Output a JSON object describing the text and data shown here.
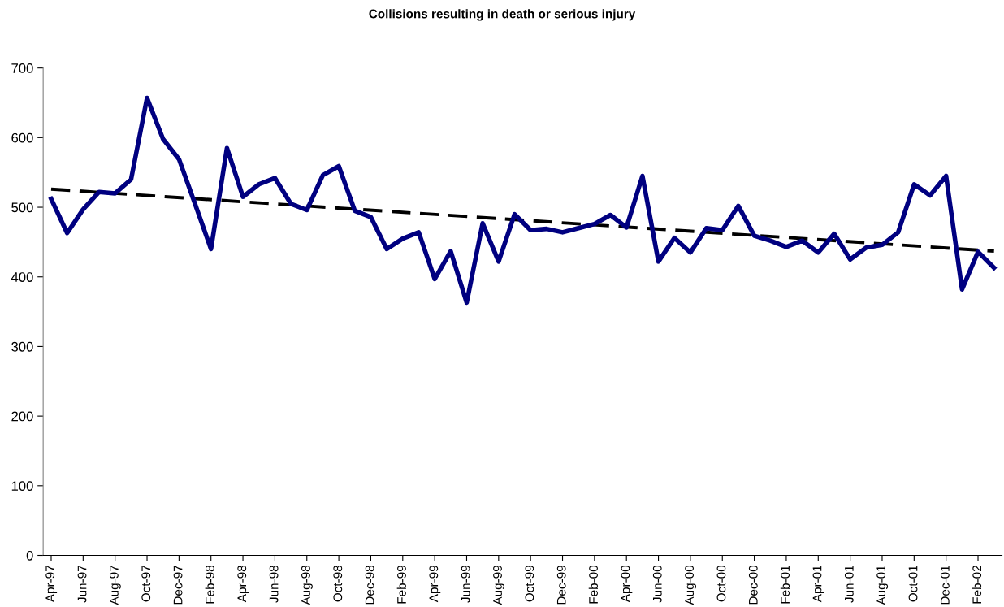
{
  "chart_data": {
    "type": "line",
    "title": "Collisions resulting in death or serious injury",
    "categories": [
      "Apr-97",
      null,
      "Jun-97",
      null,
      "Aug-97",
      null,
      "Oct-97",
      null,
      "Dec-97",
      null,
      "Feb-98",
      null,
      "Apr-98",
      null,
      "Jun-98",
      null,
      "Aug-98",
      null,
      "Oct-98",
      null,
      "Dec-98",
      null,
      "Feb-99",
      null,
      "Apr-99",
      null,
      "Jun-99",
      null,
      "Aug-99",
      null,
      "Oct-99",
      null,
      "Dec-99",
      null,
      "Feb-00",
      null,
      "Apr-00",
      null,
      "Jun-00",
      null,
      "Aug-00",
      null,
      "Oct-00",
      null,
      "Dec-00",
      null,
      "Feb-01",
      null,
      "Apr-01",
      null,
      "Jun-01",
      null,
      "Aug-01",
      null,
      "Oct-01",
      null,
      "Dec-01",
      null,
      "Feb-02",
      null
    ],
    "series": [
      {
        "color": "#000080",
        "line_style": "solid",
        "values": [
          512,
          463,
          497,
          522,
          520,
          540,
          657,
          598,
          569,
          505,
          440,
          585,
          515,
          533,
          542,
          505,
          496,
          546,
          559,
          495,
          486,
          440,
          455,
          464,
          397,
          437,
          363,
          477,
          422,
          490,
          467,
          469,
          464,
          470,
          476,
          489,
          471,
          545,
          422,
          456,
          435,
          470,
          467,
          502,
          459,
          452,
          443,
          452,
          435,
          462,
          425,
          442,
          446,
          464,
          533,
          517,
          545,
          382,
          436,
          413
        ]
      },
      {
        "color": "#000000",
        "line_style": "dashed",
        "values": [
          526,
          null,
          null,
          null,
          null,
          null,
          null,
          null,
          null,
          null,
          null,
          null,
          null,
          null,
          null,
          null,
          null,
          null,
          null,
          null,
          null,
          null,
          null,
          null,
          null,
          null,
          null,
          null,
          null,
          null,
          null,
          null,
          null,
          null,
          null,
          null,
          null,
          null,
          null,
          null,
          null,
          null,
          null,
          null,
          null,
          null,
          null,
          null,
          null,
          null,
          null,
          null,
          null,
          null,
          null,
          null,
          null,
          null,
          null,
          437
        ]
      }
    ],
    "ylim": [
      0,
      700
    ],
    "yticks": [
      0,
      100,
      200,
      300,
      400,
      500,
      600,
      700
    ],
    "grid": false,
    "legend": false,
    "marker": "none"
  }
}
